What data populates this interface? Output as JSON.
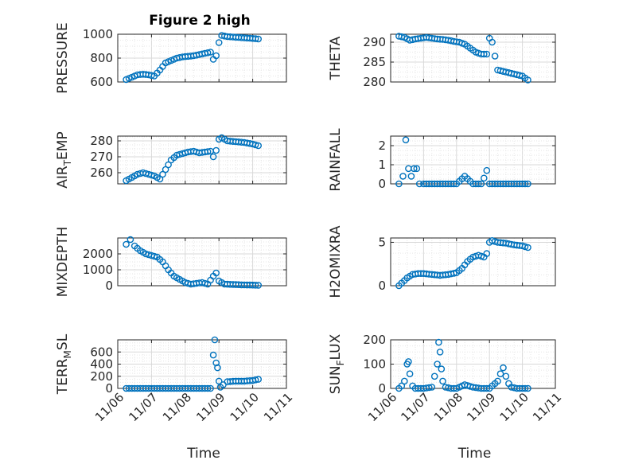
{
  "figure": {
    "title": "Figure 2 high"
  },
  "colors": {
    "marker": "#0072BD",
    "axis": "#262626",
    "grid": "#b0b0b0"
  },
  "chart_data": [
    {
      "type": "scatter",
      "ylabel": "PRESSURE",
      "ylabel_sub": "",
      "ylabel_tail": "",
      "xlabel": "",
      "xlim": [
        "2023-11-06",
        "2023-11-11"
      ],
      "ylim": [
        600,
        1000
      ],
      "yticks": [
        600,
        800,
        1000
      ],
      "xtick_labels": [],
      "grid": true,
      "title": "Figure 2 high",
      "x": [
        "2023-11-06 06:00",
        "2023-11-06 10:00",
        "2023-11-06 14:00",
        "2023-11-06 18:00",
        "2023-11-06 22:00",
        "2023-11-07 02:00",
        "2023-11-07 06:00",
        "2023-11-07 10:00",
        "2023-11-07 14:00",
        "2023-11-07 18:00",
        "2023-11-07 22:00",
        "2023-11-08 02:00",
        "2023-11-08 06:00",
        "2023-11-08 10:00",
        "2023-11-08 14:00",
        "2023-11-08 18:00",
        "2023-11-08 20:00",
        "2023-11-08 22:00",
        "2023-11-09 00:00",
        "2023-11-09 02:00",
        "2023-11-09 06:00",
        "2023-11-09 12:00",
        "2023-11-09 18:00",
        "2023-11-10 00:00",
        "2023-11-10 04:00"
      ],
      "y": [
        620,
        640,
        660,
        665,
        660,
        650,
        700,
        760,
        780,
        800,
        810,
        815,
        820,
        830,
        840,
        850,
        790,
        820,
        930,
        990,
        980,
        975,
        970,
        965,
        960
      ]
    },
    {
      "type": "scatter",
      "ylabel": "THETA",
      "ylabel_sub": "",
      "ylabel_tail": "",
      "xlabel": "",
      "xlim": [
        "2023-11-06",
        "2023-11-11"
      ],
      "ylim": [
        280,
        292
      ],
      "yticks": [
        280,
        285,
        290
      ],
      "xtick_labels": [],
      "grid": true,
      "x": [
        "2023-11-06 06:00",
        "2023-11-06 10:00",
        "2023-11-06 14:00",
        "2023-11-06 18:00",
        "2023-11-06 22:00",
        "2023-11-07 02:00",
        "2023-11-07 06:00",
        "2023-11-07 10:00",
        "2023-11-07 14:00",
        "2023-11-07 18:00",
        "2023-11-07 22:00",
        "2023-11-08 02:00",
        "2023-11-08 06:00",
        "2023-11-08 10:00",
        "2023-11-08 14:00",
        "2023-11-08 18:00",
        "2023-11-08 22:00",
        "2023-11-09 00:00",
        "2023-11-09 02:00",
        "2023-11-09 06:00",
        "2023-11-09 12:00",
        "2023-11-09 18:00",
        "2023-11-10 00:00",
        "2023-11-10 04:00"
      ],
      "y": [
        291.5,
        291.2,
        290.5,
        290.8,
        291,
        291.2,
        291,
        290.8,
        290.7,
        290.5,
        290.2,
        290,
        289.5,
        288.5,
        287.5,
        287,
        287,
        291,
        290,
        283,
        282.5,
        282,
        281.5,
        280.5
      ]
    },
    {
      "type": "scatter",
      "ylabel": "AIR",
      "ylabel_sub": "T",
      "ylabel_tail": "EMP",
      "xlabel": "",
      "xlim": [
        "2023-11-06",
        "2023-11-11"
      ],
      "ylim": [
        253,
        283
      ],
      "yticks": [
        260,
        270,
        280
      ],
      "xtick_labels": [],
      "grid": true,
      "x": [
        "2023-11-06 06:00",
        "2023-11-06 10:00",
        "2023-11-06 14:00",
        "2023-11-06 18:00",
        "2023-11-06 22:00",
        "2023-11-07 02:00",
        "2023-11-07 06:00",
        "2023-11-07 10:00",
        "2023-11-07 14:00",
        "2023-11-07 18:00",
        "2023-11-07 22:00",
        "2023-11-08 02:00",
        "2023-11-08 06:00",
        "2023-11-08 10:00",
        "2023-11-08 14:00",
        "2023-11-08 18:00",
        "2023-11-08 20:00",
        "2023-11-08 22:00",
        "2023-11-09 00:00",
        "2023-11-09 02:00",
        "2023-11-09 06:00",
        "2023-11-09 12:00",
        "2023-11-09 18:00",
        "2023-11-10 00:00",
        "2023-11-10 04:00"
      ],
      "y": [
        255,
        257,
        259,
        260,
        259,
        258,
        256,
        262,
        268,
        271,
        272,
        273,
        273.5,
        272.5,
        273,
        273.5,
        270,
        274,
        281,
        282,
        280,
        279.5,
        279,
        278,
        277
      ]
    },
    {
      "type": "scatter",
      "ylabel": "RAINFALL",
      "ylabel_sub": "",
      "ylabel_tail": "",
      "xlabel": "",
      "xlim": [
        "2023-11-06",
        "2023-11-11"
      ],
      "ylim": [
        0,
        2.5
      ],
      "yticks": [
        0,
        1,
        2
      ],
      "xtick_labels": [],
      "grid": true,
      "x": [
        "2023-11-06 06:00",
        "2023-11-06 09:00",
        "2023-11-06 11:00",
        "2023-11-06 13:00",
        "2023-11-06 15:00",
        "2023-11-06 17:00",
        "2023-11-06 19:00",
        "2023-11-06 21:00",
        "2023-11-07 00:00",
        "2023-11-07 06:00",
        "2023-11-07 12:00",
        "2023-11-07 18:00",
        "2023-11-08 00:00",
        "2023-11-08 06:00",
        "2023-11-08 12:00",
        "2023-11-08 18:00",
        "2023-11-08 20:00",
        "2023-11-08 22:00",
        "2023-11-09 00:00",
        "2023-11-09 06:00",
        "2023-11-09 12:00",
        "2023-11-09 18:00",
        "2023-11-10 00:00",
        "2023-11-10 04:00"
      ],
      "y": [
        0,
        0.4,
        2.3,
        0.8,
        0.4,
        0.8,
        0.8,
        0,
        0,
        0,
        0,
        0,
        0,
        0.4,
        0,
        0,
        0.3,
        0.7,
        0,
        0,
        0,
        0,
        0,
        0
      ]
    },
    {
      "type": "scatter",
      "ylabel": "MIXDEPTH",
      "ylabel_sub": "",
      "ylabel_tail": "",
      "xlabel": "",
      "xlim": [
        "2023-11-06",
        "2023-11-11"
      ],
      "ylim": [
        0,
        3000
      ],
      "yticks": [
        0,
        1000,
        2000
      ],
      "xtick_labels": [],
      "grid": true,
      "x": [
        "2023-11-06 06:00",
        "2023-11-06 09:00",
        "2023-11-06 12:00",
        "2023-11-06 16:00",
        "2023-11-06 20:00",
        "2023-11-07 00:00",
        "2023-11-07 04:00",
        "2023-11-07 08:00",
        "2023-11-07 12:00",
        "2023-11-07 16:00",
        "2023-11-07 20:00",
        "2023-11-08 00:00",
        "2023-11-08 04:00",
        "2023-11-08 08:00",
        "2023-11-08 12:00",
        "2023-11-08 16:00",
        "2023-11-08 20:00",
        "2023-11-08 22:00",
        "2023-11-09 00:00",
        "2023-11-09 04:00",
        "2023-11-09 10:00",
        "2023-11-09 18:00",
        "2023-11-10 00:00",
        "2023-11-10 04:00"
      ],
      "y": [
        2600,
        2900,
        2500,
        2200,
        2000,
        1900,
        1800,
        1500,
        1000,
        600,
        400,
        200,
        100,
        150,
        200,
        100,
        600,
        800,
        300,
        100,
        80,
        50,
        40,
        30
      ]
    },
    {
      "type": "scatter",
      "ylabel": "H2OMIXRA",
      "ylabel_sub": "",
      "ylabel_tail": "",
      "xlabel": "",
      "xlim": [
        "2023-11-06",
        "2023-11-11"
      ],
      "ylim": [
        0,
        5.5
      ],
      "yticks": [
        0,
        5
      ],
      "xtick_labels": [],
      "grid": true,
      "x": [
        "2023-11-06 06:00",
        "2023-11-06 08:00",
        "2023-11-06 10:00",
        "2023-11-06 12:00",
        "2023-11-06 14:00",
        "2023-11-06 16:00",
        "2023-11-06 20:00",
        "2023-11-07 00:00",
        "2023-11-07 06:00",
        "2023-11-07 12:00",
        "2023-11-07 18:00",
        "2023-11-08 00:00",
        "2023-11-08 04:00",
        "2023-11-08 08:00",
        "2023-11-08 12:00",
        "2023-11-08 16:00",
        "2023-11-08 20:00",
        "2023-11-08 22:00",
        "2023-11-09 00:00",
        "2023-11-09 02:00",
        "2023-11-09 06:00",
        "2023-11-09 12:00",
        "2023-11-09 18:00",
        "2023-11-10 00:00",
        "2023-11-10 04:00"
      ],
      "y": [
        0,
        0.3,
        0.6,
        0.9,
        1.1,
        1.3,
        1.4,
        1.4,
        1.3,
        1.2,
        1.3,
        1.5,
        2.0,
        2.8,
        3.3,
        3.5,
        3.3,
        3.7,
        5.0,
        5.2,
        5.0,
        4.9,
        4.7,
        4.6,
        4.4
      ]
    },
    {
      "type": "scatter",
      "ylabel": "TERR",
      "ylabel_sub": "M",
      "ylabel_tail": "SL",
      "xlabel": "Time",
      "xlim": [
        "2023-11-06",
        "2023-11-11"
      ],
      "ylim": [
        0,
        800
      ],
      "yticks": [
        0,
        200,
        400,
        600
      ],
      "xtick_labels": [
        "11/06",
        "11/07",
        "11/08",
        "11/09",
        "11/10",
        "11/11"
      ],
      "grid": true,
      "x": [
        "2023-11-06 06:00",
        "2023-11-06 12:00",
        "2023-11-06 18:00",
        "2023-11-07 00:00",
        "2023-11-07 06:00",
        "2023-11-07 12:00",
        "2023-11-07 18:00",
        "2023-11-08 00:00",
        "2023-11-08 06:00",
        "2023-11-08 12:00",
        "2023-11-08 18:00",
        "2023-11-08 20:00",
        "2023-11-08 21:00",
        "2023-11-08 22:00",
        "2023-11-08 23:00",
        "2023-11-09 00:00",
        "2023-11-09 01:00",
        "2023-11-09 03:00",
        "2023-11-09 06:00",
        "2023-11-09 12:00",
        "2023-11-09 18:00",
        "2023-11-10 00:00",
        "2023-11-10 04:00"
      ],
      "y": [
        0,
        0,
        0,
        0,
        0,
        0,
        0,
        0,
        0,
        0,
        0,
        550,
        800,
        420,
        340,
        120,
        20,
        60,
        110,
        120,
        120,
        130,
        150
      ]
    },
    {
      "type": "scatter",
      "ylabel": "SUN",
      "ylabel_sub": "F",
      "ylabel_tail": "LUX",
      "xlabel": "Time",
      "xlim": [
        "2023-11-06",
        "2023-11-11"
      ],
      "ylim": [
        0,
        200
      ],
      "yticks": [
        0,
        100,
        200
      ],
      "xtick_labels": [
        "11/06",
        "11/07",
        "11/08",
        "11/09",
        "11/10",
        "11/11"
      ],
      "grid": true,
      "x": [
        "2023-11-06 06:00",
        "2023-11-06 08:00",
        "2023-11-06 10:00",
        "2023-11-06 12:00",
        "2023-11-06 13:00",
        "2023-11-06 14:00",
        "2023-11-06 16:00",
        "2023-11-06 18:00",
        "2023-11-07 00:00",
        "2023-11-07 06:00",
        "2023-11-07 08:00",
        "2023-11-07 10:00",
        "2023-11-07 11:00",
        "2023-11-07 12:00",
        "2023-11-07 13:00",
        "2023-11-07 14:00",
        "2023-11-07 16:00",
        "2023-11-07 20:00",
        "2023-11-08 00:00",
        "2023-11-08 06:00",
        "2023-11-08 12:00",
        "2023-11-08 18:00",
        "2023-11-09 00:00",
        "2023-11-09 06:00",
        "2023-11-09 08:00",
        "2023-11-09 10:00",
        "2023-11-09 12:00",
        "2023-11-09 14:00",
        "2023-11-09 16:00",
        "2023-11-09 20:00",
        "2023-11-10 00:00",
        "2023-11-10 04:00"
      ],
      "y": [
        0,
        10,
        30,
        100,
        110,
        60,
        10,
        0,
        0,
        5,
        50,
        100,
        190,
        150,
        80,
        30,
        5,
        0,
        0,
        15,
        5,
        0,
        0,
        30,
        60,
        85,
        50,
        20,
        5,
        0,
        0,
        0
      ]
    }
  ]
}
